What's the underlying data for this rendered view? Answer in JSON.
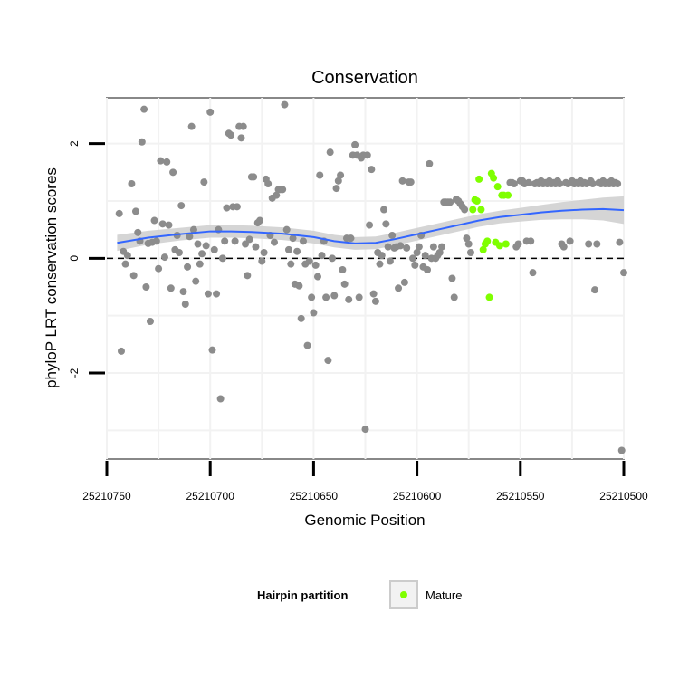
{
  "chart_data": {
    "type": "scatter",
    "title": "Conservation",
    "xlabel": "Genomic Position",
    "ylabel": "phyloP LRT conservation scores",
    "x_reversed": true,
    "xlim": [
      25210750,
      25210500
    ],
    "ylim": [
      -3.5,
      2.8
    ],
    "xticks": [
      25210750,
      25210700,
      25210650,
      25210600,
      25210550,
      25210500
    ],
    "xtick_labels": [
      "25210750",
      "25210700",
      "25210650",
      "25210600",
      "25210550",
      "25210500"
    ],
    "yticks": [
      -2,
      0,
      2
    ],
    "ytick_labels": [
      "-2",
      "0",
      "2"
    ],
    "reference_line": {
      "y": 0,
      "style": "dashed",
      "color": "#000000"
    },
    "grid": true,
    "colors": {
      "panel_bg": "#ffffff",
      "grid": "#f2f2f2",
      "panel_border": "#888888",
      "other_points": "#8c8c8c",
      "mature_points": "#7fff00",
      "smooth_line": "#3366ff",
      "smooth_band": "#d0d0d0"
    },
    "legend": {
      "title": "Hairpin partition",
      "position": "bottom",
      "entries": [
        {
          "label": "Mature",
          "color": "#7fff00"
        }
      ]
    },
    "series": [
      {
        "name": "Other",
        "color": "#8c8c8c",
        "points": [
          [
            25210744,
            0.78
          ],
          [
            25210743,
            -1.62
          ],
          [
            25210742,
            0.12
          ],
          [
            25210741,
            -0.1
          ],
          [
            25210740,
            0.05
          ],
          [
            25210738,
            1.3
          ],
          [
            25210737,
            -0.3
          ],
          [
            25210736,
            0.82
          ],
          [
            25210735,
            0.45
          ],
          [
            25210734,
            0.3
          ],
          [
            25210733,
            2.03
          ],
          [
            25210732,
            2.6
          ],
          [
            25210731,
            -0.5
          ],
          [
            25210730,
            0.26
          ],
          [
            25210729,
            -1.1
          ],
          [
            25210728,
            0.28
          ],
          [
            25210727,
            0.66
          ],
          [
            25210726,
            0.3
          ],
          [
            25210725,
            -0.18
          ],
          [
            25210724,
            1.7
          ],
          [
            25210723,
            0.6
          ],
          [
            25210722,
            0.02
          ],
          [
            25210721,
            1.68
          ],
          [
            25210720,
            0.58
          ],
          [
            25210719,
            -0.52
          ],
          [
            25210718,
            1.5
          ],
          [
            25210717,
            0.15
          ],
          [
            25210716,
            0.4
          ],
          [
            25210715,
            0.1
          ],
          [
            25210714,
            0.92
          ],
          [
            25210713,
            -0.58
          ],
          [
            25210712,
            -0.8
          ],
          [
            25210711,
            -0.15
          ],
          [
            25210710,
            0.38
          ],
          [
            25210709,
            2.3
          ],
          [
            25210708,
            0.5
          ],
          [
            25210707,
            -0.4
          ],
          [
            25210706,
            0.25
          ],
          [
            25210705,
            -0.1
          ],
          [
            25210704,
            0.08
          ],
          [
            25210703,
            1.33
          ],
          [
            25210702,
            0.22
          ],
          [
            25210701,
            -0.62
          ],
          [
            25210700,
            2.55
          ],
          [
            25210699,
            -1.6
          ],
          [
            25210698,
            0.15
          ],
          [
            25210697,
            -0.62
          ],
          [
            25210696,
            0.5
          ],
          [
            25210695,
            -2.45
          ],
          [
            25210694,
            0.0
          ],
          [
            25210693,
            0.3
          ],
          [
            25210692,
            0.88
          ],
          [
            25210691,
            2.18
          ],
          [
            25210690,
            2.15
          ],
          [
            25210689,
            0.9
          ],
          [
            25210688,
            0.3
          ],
          [
            25210687,
            0.9
          ],
          [
            25210686,
            2.3
          ],
          [
            25210685,
            2.1
          ],
          [
            25210684,
            2.3
          ],
          [
            25210683,
            0.25
          ],
          [
            25210682,
            -0.3
          ],
          [
            25210681,
            0.33
          ],
          [
            25210680,
            1.42
          ],
          [
            25210679,
            1.42
          ],
          [
            25210678,
            0.2
          ],
          [
            25210677,
            0.62
          ],
          [
            25210676,
            0.66
          ],
          [
            25210675,
            -0.05
          ],
          [
            25210674,
            0.1
          ],
          [
            25210673,
            1.38
          ],
          [
            25210672,
            1.3
          ],
          [
            25210671,
            0.4
          ],
          [
            25210670,
            1.05
          ],
          [
            25210669,
            0.28
          ],
          [
            25210668,
            1.1
          ],
          [
            25210667,
            1.2
          ],
          [
            25210666,
            1.2
          ],
          [
            25210665,
            1.2
          ],
          [
            25210664,
            2.68
          ],
          [
            25210663,
            0.5
          ],
          [
            25210662,
            0.15
          ],
          [
            25210661,
            -0.1
          ],
          [
            25210660,
            0.35
          ],
          [
            25210659,
            -0.45
          ],
          [
            25210658,
            0.12
          ],
          [
            25210657,
            -0.48
          ],
          [
            25210656,
            -1.05
          ],
          [
            25210655,
            0.3
          ],
          [
            25210654,
            -0.1
          ],
          [
            25210653,
            -1.52
          ],
          [
            25210652,
            -0.05
          ],
          [
            25210651,
            -0.68
          ],
          [
            25210650,
            -0.95
          ],
          [
            25210649,
            -0.12
          ],
          [
            25210648,
            -0.32
          ],
          [
            25210647,
            1.45
          ],
          [
            25210646,
            0.05
          ],
          [
            25210645,
            0.3
          ],
          [
            25210644,
            -0.68
          ],
          [
            25210643,
            -1.78
          ],
          [
            25210642,
            1.85
          ],
          [
            25210641,
            0.0
          ],
          [
            25210640,
            -0.65
          ],
          [
            25210639,
            1.22
          ],
          [
            25210638,
            1.35
          ],
          [
            25210637,
            1.45
          ],
          [
            25210636,
            -0.2
          ],
          [
            25210635,
            -0.45
          ],
          [
            25210634,
            0.35
          ],
          [
            25210633,
            -0.72
          ],
          [
            25210632,
            0.35
          ],
          [
            25210631,
            1.8
          ],
          [
            25210630,
            1.98
          ],
          [
            25210629,
            1.8
          ],
          [
            25210628,
            -0.68
          ],
          [
            25210627,
            1.75
          ],
          [
            25210626,
            1.8
          ],
          [
            25210625,
            -2.98
          ],
          [
            25210624,
            1.8
          ],
          [
            25210623,
            0.58
          ],
          [
            25210622,
            1.55
          ],
          [
            25210621,
            -0.62
          ],
          [
            25210620,
            -0.75
          ],
          [
            25210619,
            0.1
          ],
          [
            25210618,
            -0.1
          ],
          [
            25210617,
            0.05
          ],
          [
            25210616,
            0.85
          ],
          [
            25210615,
            0.6
          ],
          [
            25210614,
            0.2
          ],
          [
            25210613,
            -0.05
          ],
          [
            25210612,
            0.4
          ],
          [
            25210611,
            0.18
          ],
          [
            25210610,
            0.2
          ],
          [
            25210609,
            -0.52
          ],
          [
            25210608,
            0.22
          ],
          [
            25210607,
            1.35
          ],
          [
            25210606,
            -0.42
          ],
          [
            25210605,
            0.18
          ],
          [
            25210604,
            1.33
          ],
          [
            25210603,
            1.33
          ],
          [
            25210602,
            0.0
          ],
          [
            25210601,
            -0.12
          ],
          [
            25210600,
            0.1
          ],
          [
            25210599,
            0.2
          ],
          [
            25210598,
            0.4
          ],
          [
            25210597,
            -0.15
          ],
          [
            25210596,
            0.05
          ],
          [
            25210595,
            -0.2
          ],
          [
            25210594,
            1.65
          ],
          [
            25210593,
            0.0
          ],
          [
            25210592,
            0.2
          ],
          [
            25210591,
            0.0
          ],
          [
            25210590,
            0.05
          ],
          [
            25210589,
            0.1
          ],
          [
            25210588,
            0.2
          ],
          [
            25210587,
            0.98
          ],
          [
            25210586,
            0.98
          ],
          [
            25210585,
            0.98
          ],
          [
            25210584,
            0.98
          ],
          [
            25210583,
            -0.35
          ],
          [
            25210582,
            -0.68
          ],
          [
            25210581,
            1.03
          ],
          [
            25210580,
            1.0
          ],
          [
            25210579,
            0.95
          ],
          [
            25210578,
            0.9
          ],
          [
            25210577,
            0.85
          ],
          [
            25210576,
            0.35
          ],
          [
            25210575,
            0.25
          ],
          [
            25210574,
            0.1
          ],
          [
            25210555,
            1.32
          ],
          [
            25210554,
            1.32
          ],
          [
            25210553,
            1.3
          ],
          [
            25210552,
            0.2
          ],
          [
            25210551,
            0.25
          ],
          [
            25210550,
            1.35
          ],
          [
            25210549,
            1.35
          ],
          [
            25210548,
            1.3
          ],
          [
            25210547,
            0.3
          ],
          [
            25210546,
            1.32
          ],
          [
            25210545,
            0.3
          ],
          [
            25210544,
            -0.25
          ],
          [
            25210543,
            1.3
          ],
          [
            25210542,
            1.32
          ],
          [
            25210541,
            1.3
          ],
          [
            25210540,
            1.35
          ],
          [
            25210539,
            1.3
          ],
          [
            25210538,
            1.32
          ],
          [
            25210537,
            1.3
          ],
          [
            25210536,
            1.35
          ],
          [
            25210535,
            1.3
          ],
          [
            25210534,
            1.32
          ],
          [
            25210533,
            1.3
          ],
          [
            25210532,
            1.35
          ],
          [
            25210531,
            1.3
          ],
          [
            25210530,
            0.25
          ],
          [
            25210529,
            0.2
          ],
          [
            25210528,
            1.32
          ],
          [
            25210527,
            1.3
          ],
          [
            25210526,
            0.3
          ],
          [
            25210525,
            1.35
          ],
          [
            25210524,
            1.3
          ],
          [
            25210523,
            1.32
          ],
          [
            25210522,
            1.3
          ],
          [
            25210521,
            1.35
          ],
          [
            25210520,
            1.3
          ],
          [
            25210519,
            1.32
          ],
          [
            25210518,
            1.3
          ],
          [
            25210517,
            0.25
          ],
          [
            25210516,
            1.35
          ],
          [
            25210515,
            1.3
          ],
          [
            25210514,
            -0.55
          ],
          [
            25210513,
            0.25
          ],
          [
            25210512,
            1.32
          ],
          [
            25210511,
            1.3
          ],
          [
            25210510,
            1.35
          ],
          [
            25210509,
            1.3
          ],
          [
            25210508,
            1.32
          ],
          [
            25210507,
            1.3
          ],
          [
            25210506,
            1.35
          ],
          [
            25210505,
            1.3
          ],
          [
            25210504,
            1.32
          ],
          [
            25210503,
            1.3
          ],
          [
            25210502,
            0.28
          ],
          [
            25210501,
            -3.35
          ],
          [
            25210500,
            -0.25
          ]
        ]
      },
      {
        "name": "Mature",
        "color": "#7fff00",
        "points": [
          [
            25210573,
            0.85
          ],
          [
            25210572,
            1.02
          ],
          [
            25210571,
            1.0
          ],
          [
            25210570,
            1.38
          ],
          [
            25210569,
            0.85
          ],
          [
            25210568,
            0.15
          ],
          [
            25210567,
            0.25
          ],
          [
            25210566,
            0.3
          ],
          [
            25210565,
            -0.68
          ],
          [
            25210564,
            1.48
          ],
          [
            25210563,
            1.4
          ],
          [
            25210562,
            0.28
          ],
          [
            25210561,
            1.25
          ],
          [
            25210560,
            0.22
          ],
          [
            25210559,
            1.1
          ],
          [
            25210558,
            1.1
          ],
          [
            25210557,
            0.25
          ],
          [
            25210556,
            1.1
          ]
        ]
      }
    ],
    "smooth": {
      "method": "loess",
      "x": [
        25210745,
        25210730,
        25210715,
        25210700,
        25210690,
        25210680,
        25210665,
        25210650,
        25210640,
        25210630,
        25210620,
        25210610,
        25210600,
        25210590,
        25210580,
        25210570,
        25210560,
        25210550,
        25210540,
        25210530,
        25210520,
        25210510,
        25210500
      ],
      "y": [
        0.27,
        0.36,
        0.42,
        0.47,
        0.47,
        0.46,
        0.43,
        0.37,
        0.3,
        0.26,
        0.27,
        0.34,
        0.42,
        0.5,
        0.58,
        0.66,
        0.72,
        0.76,
        0.8,
        0.83,
        0.85,
        0.86,
        0.84
      ],
      "ci": [
        0.14,
        0.12,
        0.11,
        0.11,
        0.11,
        0.11,
        0.11,
        0.11,
        0.11,
        0.11,
        0.11,
        0.11,
        0.11,
        0.11,
        0.11,
        0.11,
        0.11,
        0.12,
        0.13,
        0.15,
        0.17,
        0.2,
        0.24
      ]
    }
  }
}
